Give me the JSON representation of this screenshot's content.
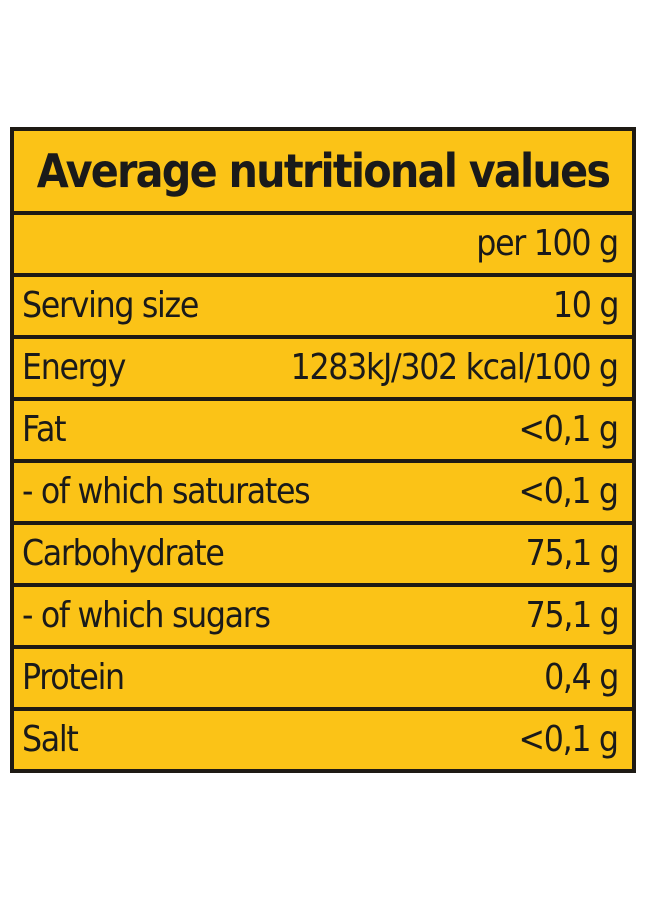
{
  "title": "Average nutritional values",
  "column_header": "per 100 g",
  "colors": {
    "background": "#fbc317",
    "border": "#1e1a14",
    "text": "#1a1a1a"
  },
  "rows": [
    {
      "label": "Serving size",
      "value": "10 g"
    },
    {
      "label": "Energy",
      "value": "1283kJ/302 kcal/100 g"
    },
    {
      "label": "Fat",
      "value": "<0,1 g"
    },
    {
      "label": "- of which saturates",
      "value": "<0,1 g"
    },
    {
      "label": "Carbohydrate",
      "value": "75,1 g"
    },
    {
      "label": "- of which sugars",
      "value": "75,1 g"
    },
    {
      "label": "Protein",
      "value": "0,4 g"
    },
    {
      "label": "Salt",
      "value": "<0,1 g"
    }
  ]
}
